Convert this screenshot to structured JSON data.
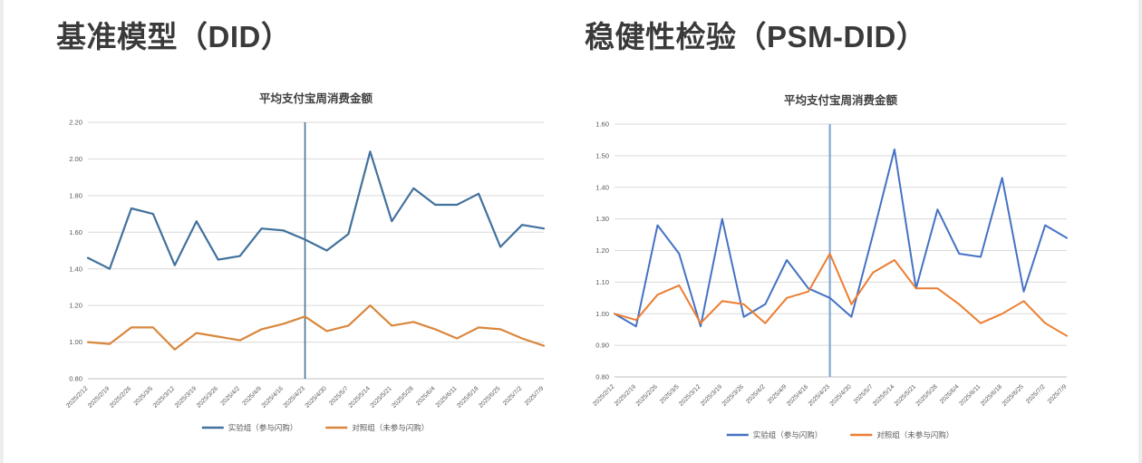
{
  "page": {
    "left_panel_title": "基准模型（DID）",
    "right_panel_title": "稳健性检验（PSM-DID）"
  },
  "chart_data": [
    {
      "type": "line",
      "title": "平均支付宝周消费金额",
      "categories": [
        "2025/2/12",
        "2025/2/19",
        "2025/2/26",
        "2025/3/5",
        "2025/3/12",
        "2025/3/19",
        "2025/3/26",
        "2025/4/2",
        "2025/4/9",
        "2025/4/16",
        "2025/4/23",
        "2025/4/30",
        "2025/5/7",
        "2025/5/14",
        "2025/5/21",
        "2025/5/28",
        "2025/6/4",
        "2025/6/11",
        "2025/6/18",
        "2025/6/25",
        "2025/7/2",
        "2025/7/9"
      ],
      "series": [
        {
          "name": "实验组（参与闪购）",
          "color": "#41719C",
          "values": [
            1.46,
            1.4,
            1.73,
            1.7,
            1.42,
            1.66,
            1.45,
            1.47,
            1.62,
            1.61,
            1.56,
            1.5,
            1.59,
            2.04,
            1.66,
            1.84,
            1.75,
            1.75,
            1.81,
            1.52,
            1.64,
            1.62
          ]
        },
        {
          "name": "对照组（未参与闪购）",
          "color": "#D9873D",
          "values": [
            1.0,
            0.99,
            1.08,
            1.08,
            0.96,
            1.05,
            1.03,
            1.01,
            1.07,
            1.1,
            1.14,
            1.06,
            1.09,
            1.2,
            1.09,
            1.11,
            1.07,
            1.02,
            1.08,
            1.07,
            1.02,
            0.98
          ]
        }
      ],
      "ylim": [
        0.8,
        2.2
      ],
      "ytick_step": 0.2,
      "ytick_decimals": 2,
      "grid": true,
      "legend_position": "bottom",
      "event_line": {
        "category": "2025/4/23",
        "index": 10,
        "color": "#4A7191"
      }
    },
    {
      "type": "line",
      "title": "平均支付宝周消费金额",
      "categories": [
        "2025/2/12",
        "2025/2/19",
        "2025/2/26",
        "2025/3/5",
        "2025/3/12",
        "2025/3/19",
        "2025/3/26",
        "2025/4/2",
        "2025/4/9",
        "2025/4/16",
        "2025/4/23",
        "2025/4/30",
        "2025/5/7",
        "2025/5/14",
        "2025/5/21",
        "2025/5/28",
        "2025/6/4",
        "2025/6/11",
        "2025/6/18",
        "2025/6/25",
        "2025/7/2",
        "2025/7/9"
      ],
      "series": [
        {
          "name": "实验组（参与闪购）",
          "color": "#4472C4",
          "values": [
            1.0,
            0.96,
            1.28,
            1.19,
            0.96,
            1.3,
            0.99,
            1.03,
            1.17,
            1.08,
            1.05,
            0.99,
            1.25,
            1.52,
            1.08,
            1.33,
            1.19,
            1.18,
            1.43,
            1.07,
            1.28,
            1.24
          ]
        },
        {
          "name": "对照组（未参与闪购）",
          "color": "#ED7D31",
          "values": [
            1.0,
            0.98,
            1.06,
            1.09,
            0.97,
            1.04,
            1.03,
            0.97,
            1.05,
            1.07,
            1.19,
            1.03,
            1.13,
            1.17,
            1.08,
            1.08,
            1.03,
            0.97,
            1.0,
            1.04,
            0.97,
            0.93
          ]
        }
      ],
      "ylim": [
        0.8,
        1.6
      ],
      "ytick_step": 0.1,
      "ytick_decimals": 2,
      "grid": true,
      "legend_position": "bottom",
      "event_line": {
        "category": "2025/4/23",
        "index": 10,
        "color": "#82A7D8"
      }
    }
  ]
}
